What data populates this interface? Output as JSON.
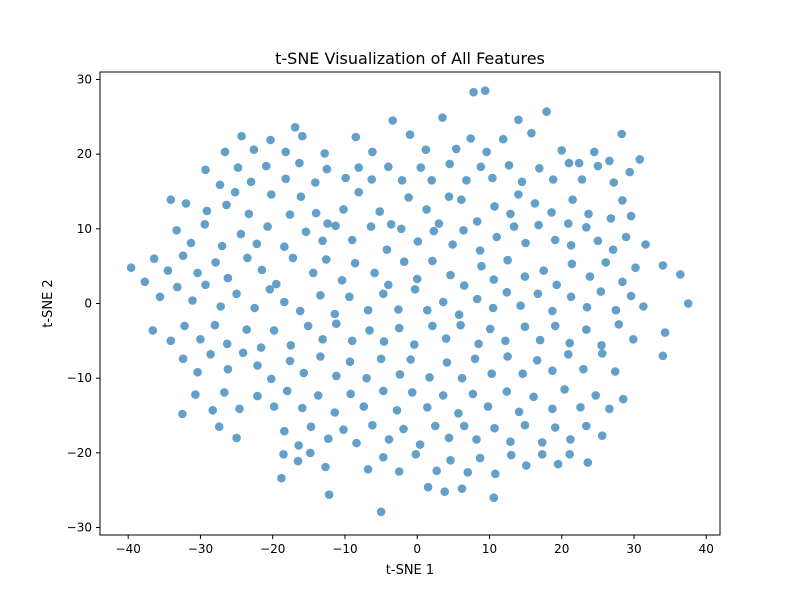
{
  "chart_data": {
    "type": "scatter",
    "title": "t-SNE Visualization of All Features",
    "xlabel": "t-SNE 1",
    "ylabel": "t-SNE 2",
    "xlim": [
      -43.9,
      41.9
    ],
    "ylim": [
      -31.0,
      31.0
    ],
    "xticks": [
      -40,
      -30,
      -20,
      -10,
      0,
      10,
      20,
      30,
      40
    ],
    "yticks": [
      -30,
      -20,
      -10,
      0,
      10,
      20,
      30
    ],
    "grid": false,
    "legend": "none",
    "marker_color": "#1f77b4",
    "marker_alpha": 0.7,
    "points": [
      [
        -34.1,
        13.9
      ],
      [
        -32.0,
        13.4
      ],
      [
        -29.1,
        12.4
      ],
      [
        -26.4,
        13.2
      ],
      [
        -25.2,
        14.9
      ],
      [
        -23.3,
        12.0
      ],
      [
        -20.2,
        14.6
      ],
      [
        -17.6,
        11.9
      ],
      [
        -16.1,
        14.3
      ],
      [
        -14.0,
        12.1
      ],
      [
        -12.4,
        10.7
      ],
      [
        -10.2,
        12.6
      ],
      [
        -8.1,
        14.9
      ],
      [
        -5.2,
        12.3
      ],
      [
        -3.6,
        10.6
      ],
      [
        -1.2,
        14.2
      ],
      [
        1.3,
        12.6
      ],
      [
        3.0,
        10.7
      ],
      [
        4.4,
        14.3
      ],
      [
        6.1,
        13.9
      ],
      [
        8.3,
        11.0
      ],
      [
        10.7,
        13.0
      ],
      [
        12.9,
        12.0
      ],
      [
        14.0,
        14.6
      ],
      [
        16.3,
        13.4
      ],
      [
        18.6,
        12.2
      ],
      [
        20.9,
        10.7
      ],
      [
        21.5,
        13.9
      ],
      [
        23.7,
        12.0
      ],
      [
        26.8,
        11.4
      ],
      [
        28.4,
        13.8
      ],
      [
        29.6,
        11.7
      ],
      [
        -33.3,
        9.8
      ],
      [
        -31.3,
        8.1
      ],
      [
        -29.4,
        10.6
      ],
      [
        -27.0,
        7.7
      ],
      [
        -24.4,
        9.3
      ],
      [
        -22.2,
        8.0
      ],
      [
        -20.7,
        10.3
      ],
      [
        -18.4,
        7.6
      ],
      [
        -15.4,
        9.6
      ],
      [
        -13.1,
        8.4
      ],
      [
        -11.3,
        10.4
      ],
      [
        -9.0,
        8.5
      ],
      [
        -6.4,
        10.3
      ],
      [
        -4.2,
        7.2
      ],
      [
        -2.2,
        10.0
      ],
      [
        0.1,
        8.3
      ],
      [
        2.3,
        9.7
      ],
      [
        4.9,
        7.9
      ],
      [
        6.4,
        9.8
      ],
      [
        8.7,
        7.1
      ],
      [
        11.0,
        8.9
      ],
      [
        13.4,
        10.3
      ],
      [
        15.0,
        8.1
      ],
      [
        16.8,
        10.5
      ],
      [
        19.1,
        8.5
      ],
      [
        21.3,
        7.8
      ],
      [
        23.4,
        10.2
      ],
      [
        25.0,
        8.4
      ],
      [
        27.1,
        7.2
      ],
      [
        28.9,
        8.9
      ],
      [
        31.6,
        7.9
      ],
      [
        -36.4,
        6.0
      ],
      [
        -34.5,
        4.4
      ],
      [
        -32.4,
        6.4
      ],
      [
        -30.4,
        4.1
      ],
      [
        -27.9,
        5.5
      ],
      [
        -26.2,
        3.4
      ],
      [
        -23.5,
        6.1
      ],
      [
        -21.5,
        4.5
      ],
      [
        -19.5,
        2.6
      ],
      [
        -17.2,
        6.1
      ],
      [
        -14.4,
        4.1
      ],
      [
        -12.6,
        5.9
      ],
      [
        -10.4,
        3.1
      ],
      [
        -8.6,
        5.4
      ],
      [
        -5.9,
        4.1
      ],
      [
        -4.0,
        2.5
      ],
      [
        -1.8,
        5.6
      ],
      [
        0.0,
        3.3
      ],
      [
        2.1,
        5.7
      ],
      [
        4.6,
        3.8
      ],
      [
        6.5,
        2.4
      ],
      [
        8.9,
        5.0
      ],
      [
        10.6,
        3.2
      ],
      [
        12.5,
        5.8
      ],
      [
        14.9,
        3.6
      ],
      [
        17.5,
        4.4
      ],
      [
        19.3,
        2.5
      ],
      [
        21.4,
        5.3
      ],
      [
        23.9,
        3.6
      ],
      [
        26.1,
        5.5
      ],
      [
        28.4,
        2.9
      ],
      [
        30.2,
        4.8
      ],
      [
        34.0,
        5.1
      ],
      [
        36.4,
        3.9
      ],
      [
        -39.6,
        4.8
      ],
      [
        -37.7,
        2.9
      ],
      [
        -35.6,
        0.9
      ],
      [
        -33.2,
        2.2
      ],
      [
        -31.1,
        0.4
      ],
      [
        -29.3,
        2.5
      ],
      [
        -27.2,
        -0.4
      ],
      [
        -25.0,
        1.3
      ],
      [
        -22.5,
        -0.6
      ],
      [
        -20.4,
        1.9
      ],
      [
        -18.4,
        0.2
      ],
      [
        -16.2,
        -1.0
      ],
      [
        -13.4,
        1.1
      ],
      [
        -11.4,
        -1.4
      ],
      [
        -9.4,
        0.9
      ],
      [
        -6.8,
        -0.9
      ],
      [
        -4.7,
        1.3
      ],
      [
        -2.6,
        -0.8
      ],
      [
        -0.3,
        1.9
      ],
      [
        1.4,
        -0.9
      ],
      [
        3.6,
        0.2
      ],
      [
        5.8,
        -1.5
      ],
      [
        8.3,
        0.6
      ],
      [
        10.5,
        -0.6
      ],
      [
        12.4,
        1.5
      ],
      [
        14.3,
        -0.3
      ],
      [
        16.7,
        1.3
      ],
      [
        18.7,
        -1.0
      ],
      [
        21.3,
        0.9
      ],
      [
        23.5,
        -0.5
      ],
      [
        25.4,
        1.6
      ],
      [
        27.5,
        -0.9
      ],
      [
        29.6,
        1.0
      ],
      [
        31.3,
        -0.4
      ],
      [
        37.5,
        0.0
      ],
      [
        -36.6,
        -3.6
      ],
      [
        -34.1,
        -5.0
      ],
      [
        -32.2,
        -3.0
      ],
      [
        -30.0,
        -4.8
      ],
      [
        -28.0,
        -2.9
      ],
      [
        -26.3,
        -5.4
      ],
      [
        -23.6,
        -3.5
      ],
      [
        -21.6,
        -5.9
      ],
      [
        -19.8,
        -3.6
      ],
      [
        -17.5,
        -5.6
      ],
      [
        -15.1,
        -3.0
      ],
      [
        -13.1,
        -4.8
      ],
      [
        -11.2,
        -2.7
      ],
      [
        -9.0,
        -5.0
      ],
      [
        -6.6,
        -3.6
      ],
      [
        -4.6,
        -5.1
      ],
      [
        -2.5,
        -3.3
      ],
      [
        -0.4,
        -5.5
      ],
      [
        2.1,
        -3.0
      ],
      [
        4.0,
        -4.7
      ],
      [
        6.0,
        -2.9
      ],
      [
        8.5,
        -5.4
      ],
      [
        10.1,
        -3.4
      ],
      [
        12.2,
        -5.0
      ],
      [
        14.9,
        -3.1
      ],
      [
        17.0,
        -4.9
      ],
      [
        19.1,
        -3.0
      ],
      [
        21.1,
        -5.3
      ],
      [
        23.4,
        -3.5
      ],
      [
        25.5,
        -5.6
      ],
      [
        27.9,
        -2.8
      ],
      [
        29.9,
        -4.8
      ],
      [
        34.3,
        -3.9
      ],
      [
        -32.4,
        -7.4
      ],
      [
        -30.4,
        -9.2
      ],
      [
        -28.6,
        -6.8
      ],
      [
        -26.2,
        -8.8
      ],
      [
        -24.1,
        -6.6
      ],
      [
        -22.1,
        -8.3
      ],
      [
        -20.2,
        -10.1
      ],
      [
        -17.6,
        -7.7
      ],
      [
        -15.7,
        -9.3
      ],
      [
        -13.4,
        -7.1
      ],
      [
        -11.2,
        -9.7
      ],
      [
        -9.3,
        -7.8
      ],
      [
        -7.0,
        -10.0
      ],
      [
        -5.0,
        -7.4
      ],
      [
        -2.4,
        -9.5
      ],
      [
        -0.9,
        -7.5
      ],
      [
        1.7,
        -9.9
      ],
      [
        4.1,
        -7.9
      ],
      [
        6.2,
        -10.0
      ],
      [
        8.0,
        -7.4
      ],
      [
        10.3,
        -9.4
      ],
      [
        12.5,
        -7.1
      ],
      [
        14.6,
        -9.4
      ],
      [
        16.6,
        -7.6
      ],
      [
        18.7,
        -9.0
      ],
      [
        20.9,
        -6.8
      ],
      [
        23.0,
        -8.8
      ],
      [
        25.6,
        -6.7
      ],
      [
        27.4,
        -9.1
      ],
      [
        34.0,
        -7.0
      ],
      [
        -32.5,
        -14.8
      ],
      [
        -30.7,
        -12.2
      ],
      [
        -28.3,
        -14.3
      ],
      [
        -26.7,
        -11.9
      ],
      [
        -24.6,
        -14.1
      ],
      [
        -22.1,
        -12.4
      ],
      [
        -19.8,
        -13.8
      ],
      [
        -18.0,
        -11.7
      ],
      [
        -15.9,
        -14.0
      ],
      [
        -13.7,
        -12.3
      ],
      [
        -11.4,
        -14.6
      ],
      [
        -9.2,
        -12.1
      ],
      [
        -7.4,
        -13.8
      ],
      [
        -4.7,
        -11.7
      ],
      [
        -2.8,
        -14.3
      ],
      [
        -0.7,
        -11.9
      ],
      [
        1.4,
        -13.9
      ],
      [
        3.6,
        -12.3
      ],
      [
        5.7,
        -14.7
      ],
      [
        7.7,
        -12.1
      ],
      [
        9.8,
        -13.8
      ],
      [
        12.4,
        -11.8
      ],
      [
        14.1,
        -14.5
      ],
      [
        16.1,
        -12.5
      ],
      [
        18.7,
        -14.1
      ],
      [
        20.4,
        -11.5
      ],
      [
        22.6,
        -13.9
      ],
      [
        24.7,
        -12.3
      ],
      [
        26.6,
        -14.1
      ],
      [
        28.5,
        -12.8
      ],
      [
        -27.4,
        -16.5
      ],
      [
        -25.0,
        -18.0
      ],
      [
        -18.4,
        -17.1
      ],
      [
        -16.4,
        -19.0
      ],
      [
        -14.7,
        -16.5
      ],
      [
        -12.3,
        -18.1
      ],
      [
        -10.2,
        -16.9
      ],
      [
        -8.4,
        -18.7
      ],
      [
        -6.2,
        -16.3
      ],
      [
        -3.9,
        -18.2
      ],
      [
        -1.9,
        -16.8
      ],
      [
        0.4,
        -18.9
      ],
      [
        2.5,
        -16.4
      ],
      [
        4.4,
        -18.0
      ],
      [
        6.5,
        -16.4
      ],
      [
        8.2,
        -18.2
      ],
      [
        10.7,
        -16.7
      ],
      [
        12.9,
        -18.5
      ],
      [
        14.9,
        -16.3
      ],
      [
        17.3,
        -18.6
      ],
      [
        19.1,
        -16.6
      ],
      [
        21.2,
        -18.2
      ],
      [
        23.4,
        -16.4
      ],
      [
        25.6,
        -17.7
      ],
      [
        -18.5,
        -20.2
      ],
      [
        -16.5,
        -21.1
      ],
      [
        -14.8,
        -20.0
      ],
      [
        -12.7,
        -21.9
      ],
      [
        -6.8,
        -22.2
      ],
      [
        -4.7,
        -20.6
      ],
      [
        -2.5,
        -22.5
      ],
      [
        -0.2,
        -20.2
      ],
      [
        2.7,
        -22.4
      ],
      [
        4.6,
        -21.0
      ],
      [
        7.0,
        -22.6
      ],
      [
        8.7,
        -20.7
      ],
      [
        10.8,
        -22.8
      ],
      [
        13.0,
        -20.3
      ],
      [
        15.1,
        -21.7
      ],
      [
        17.3,
        -20.2
      ],
      [
        19.5,
        -21.5
      ],
      [
        21.1,
        -20.2
      ],
      [
        23.6,
        -21.3
      ],
      [
        -18.8,
        -23.4
      ],
      [
        -12.2,
        -25.6
      ],
      [
        -5.0,
        -27.9
      ],
      [
        1.5,
        -24.6
      ],
      [
        3.8,
        -25.2
      ],
      [
        6.2,
        -24.8
      ],
      [
        10.6,
        -26.0
      ],
      [
        7.8,
        28.3
      ],
      [
        9.4,
        28.5
      ],
      [
        -29.3,
        17.9
      ],
      [
        -27.3,
        15.9
      ],
      [
        -24.8,
        18.2
      ],
      [
        -23.0,
        16.3
      ],
      [
        -20.9,
        18.4
      ],
      [
        -18.2,
        16.7
      ],
      [
        -16.3,
        18.8
      ],
      [
        -14.1,
        16.2
      ],
      [
        -12.5,
        18.0
      ],
      [
        -9.9,
        16.8
      ],
      [
        -8.1,
        18.2
      ],
      [
        -6.3,
        16.6
      ],
      [
        -4.0,
        18.3
      ],
      [
        -2.1,
        16.5
      ],
      [
        0.5,
        18.2
      ],
      [
        2.0,
        16.5
      ],
      [
        4.5,
        18.7
      ],
      [
        6.8,
        16.5
      ],
      [
        8.8,
        18.3
      ],
      [
        10.4,
        16.8
      ],
      [
        12.7,
        18.5
      ],
      [
        14.5,
        16.3
      ],
      [
        16.9,
        18.1
      ],
      [
        18.8,
        16.6
      ],
      [
        21.0,
        18.8
      ],
      [
        22.8,
        16.6
      ],
      [
        25.0,
        18.4
      ],
      [
        27.2,
        16.2
      ],
      [
        29.4,
        17.6
      ],
      [
        -26.6,
        20.3
      ],
      [
        -24.3,
        22.4
      ],
      [
        -22.6,
        20.6
      ],
      [
        -20.3,
        21.9
      ],
      [
        -18.2,
        20.3
      ],
      [
        -15.9,
        22.4
      ],
      [
        -12.8,
        20.1
      ],
      [
        -8.5,
        22.3
      ],
      [
        -6.2,
        20.3
      ],
      [
        -3.4,
        24.5
      ],
      [
        -1.0,
        22.6
      ],
      [
        1.2,
        20.6
      ],
      [
        3.5,
        24.9
      ],
      [
        5.4,
        20.7
      ],
      [
        7.4,
        22.1
      ],
      [
        9.6,
        20.3
      ],
      [
        11.9,
        22.0
      ],
      [
        14.0,
        24.6
      ],
      [
        15.8,
        22.8
      ],
      [
        17.9,
        25.7
      ],
      [
        20.0,
        20.5
      ],
      [
        22.4,
        18.8
      ],
      [
        24.5,
        20.3
      ],
      [
        26.6,
        19.1
      ],
      [
        28.3,
        22.7
      ],
      [
        30.8,
        19.3
      ],
      [
        -16.9,
        23.6
      ]
    ]
  }
}
